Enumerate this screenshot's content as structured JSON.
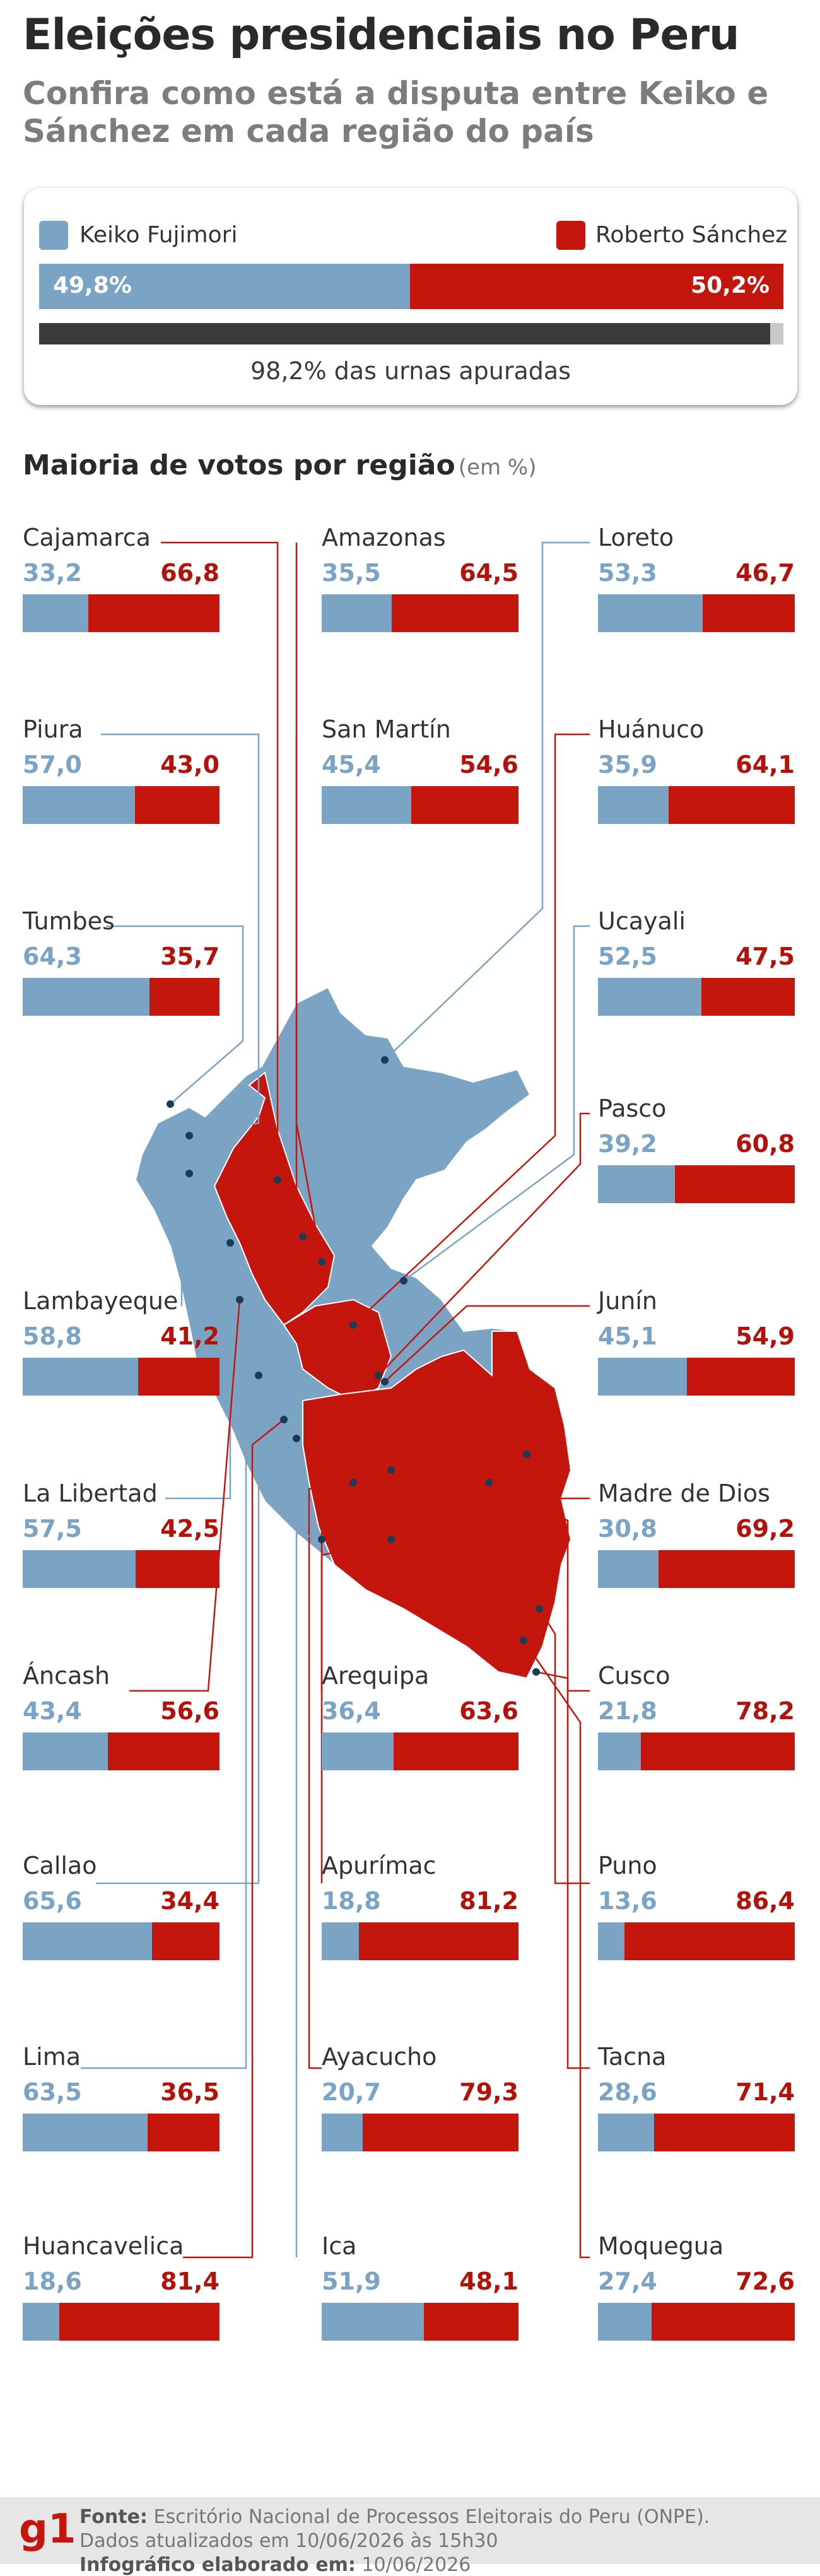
{
  "header": {
    "title": "Eleições presidenciais no Peru",
    "subtitle": "Confira como está a disputa entre Keiko e Sánchez em cada região do país"
  },
  "national": {
    "candidate_a": "Keiko Fujimori",
    "candidate_b": "Roberto Sánchez",
    "pct_a_label": "49,8%",
    "pct_b_label": "50,2%",
    "pct_a": 49.8,
    "pct_b": 50.2,
    "counted_pct": 98.2,
    "counted_label": "98,2% das urnas apuradas"
  },
  "section": {
    "title": "Maioria de votos por região",
    "unit": "(em %)"
  },
  "colors": {
    "keiko": "#7aa3c4",
    "sanchez": "#c5160d",
    "progress": "#3b3b3b"
  },
  "chart_data": {
    "type": "bar",
    "stacked": true,
    "orientation": "horizontal",
    "title": "Maioria de votos por região",
    "unit": "%",
    "xlim": [
      0,
      100
    ],
    "series": [
      {
        "name": "Keiko Fujimori",
        "color": "#7aa3c4"
      },
      {
        "name": "Roberto Sánchez",
        "color": "#c5160d"
      }
    ],
    "regions": [
      {
        "name": "Cajamarca",
        "keiko": 33.2,
        "sanchez": 66.8,
        "keiko_label": "33,2",
        "sanchez_label": "66,8"
      },
      {
        "name": "Amazonas",
        "keiko": 35.5,
        "sanchez": 64.5,
        "keiko_label": "35,5",
        "sanchez_label": "64,5"
      },
      {
        "name": "Loreto",
        "keiko": 53.3,
        "sanchez": 46.7,
        "keiko_label": "53,3",
        "sanchez_label": "46,7"
      },
      {
        "name": "Piura",
        "keiko": 57.0,
        "sanchez": 43.0,
        "keiko_label": "57,0",
        "sanchez_label": "43,0"
      },
      {
        "name": "San Martín",
        "keiko": 45.4,
        "sanchez": 54.6,
        "keiko_label": "45,4",
        "sanchez_label": "54,6"
      },
      {
        "name": "Huánuco",
        "keiko": 35.9,
        "sanchez": 64.1,
        "keiko_label": "35,9",
        "sanchez_label": "64,1"
      },
      {
        "name": "Tumbes",
        "keiko": 64.3,
        "sanchez": 35.7,
        "keiko_label": "64,3",
        "sanchez_label": "35,7"
      },
      {
        "name": "Ucayali",
        "keiko": 52.5,
        "sanchez": 47.5,
        "keiko_label": "52,5",
        "sanchez_label": "47,5"
      },
      {
        "name": "Pasco",
        "keiko": 39.2,
        "sanchez": 60.8,
        "keiko_label": "39,2",
        "sanchez_label": "60,8"
      },
      {
        "name": "Lambayeque",
        "keiko": 58.8,
        "sanchez": 41.2,
        "keiko_label": "58,8",
        "sanchez_label": "41,2"
      },
      {
        "name": "Junín",
        "keiko": 45.1,
        "sanchez": 54.9,
        "keiko_label": "45,1",
        "sanchez_label": "54,9"
      },
      {
        "name": "La Libertad",
        "keiko": 57.5,
        "sanchez": 42.5,
        "keiko_label": "57,5",
        "sanchez_label": "42,5"
      },
      {
        "name": "Madre de Dios",
        "keiko": 30.8,
        "sanchez": 69.2,
        "keiko_label": "30,8",
        "sanchez_label": "69,2"
      },
      {
        "name": "Áncash",
        "keiko": 43.4,
        "sanchez": 56.6,
        "keiko_label": "43,4",
        "sanchez_label": "56,6"
      },
      {
        "name": "Arequipa",
        "keiko": 36.4,
        "sanchez": 63.6,
        "keiko_label": "36,4",
        "sanchez_label": "63,6"
      },
      {
        "name": "Cusco",
        "keiko": 21.8,
        "sanchez": 78.2,
        "keiko_label": "21,8",
        "sanchez_label": "78,2"
      },
      {
        "name": "Callao",
        "keiko": 65.6,
        "sanchez": 34.4,
        "keiko_label": "65,6",
        "sanchez_label": "34,4"
      },
      {
        "name": "Apurímac",
        "keiko": 18.8,
        "sanchez": 81.2,
        "keiko_label": "18,8",
        "sanchez_label": "81,2"
      },
      {
        "name": "Puno",
        "keiko": 13.6,
        "sanchez": 86.4,
        "keiko_label": "13,6",
        "sanchez_label": "86,4"
      },
      {
        "name": "Lima",
        "keiko": 63.5,
        "sanchez": 36.5,
        "keiko_label": "63,5",
        "sanchez_label": "36,5"
      },
      {
        "name": "Ayacucho",
        "keiko": 20.7,
        "sanchez": 79.3,
        "keiko_label": "20,7",
        "sanchez_label": "79,3"
      },
      {
        "name": "Tacna",
        "keiko": 28.6,
        "sanchez": 71.4,
        "keiko_label": "28,6",
        "sanchez_label": "71,4"
      },
      {
        "name": "Huancavelica",
        "keiko": 18.6,
        "sanchez": 81.4,
        "keiko_label": "18,6",
        "sanchez_label": "81,4"
      },
      {
        "name": "Ica",
        "keiko": 51.9,
        "sanchez": 48.1,
        "keiko_label": "51,9",
        "sanchez_label": "48,1"
      },
      {
        "name": "Moquegua",
        "keiko": 27.4,
        "sanchez": 72.6,
        "keiko_label": "27,4",
        "sanchez_label": "72,6"
      }
    ]
  },
  "footer": {
    "logo": "g1",
    "source_label": "Fonte:",
    "source_text": "Escritório Nacional de Processos Eleitorais do Peru (ONPE).",
    "updated_text": "Dados atualizados em 10/06/2026 às 15h30",
    "made_label": "Infográfico elaborado em:",
    "made_date": "10/06/2026"
  }
}
